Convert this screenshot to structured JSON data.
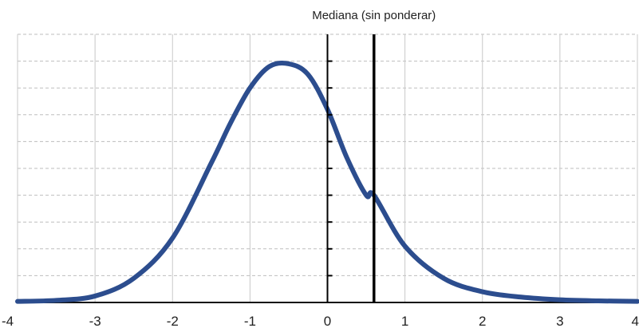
{
  "chart_data": {
    "type": "line",
    "title": "",
    "xlabel": "",
    "ylabel": "",
    "xlim": [
      -4,
      4
    ],
    "ylim": [
      0,
      0.5
    ],
    "grid": true,
    "grid_style": "horizontal dashed, vertical solid",
    "x_ticks": [
      -4,
      -3,
      -2,
      -1,
      0,
      1,
      2,
      3,
      4
    ],
    "x_tick_labels": [
      "-4",
      "-3",
      "-2",
      "-1",
      "0",
      "1",
      "2",
      "3",
      "4"
    ],
    "series": [
      {
        "color": "#2c4d8e",
        "x": [
          -4.0,
          -3.5,
          -3.0,
          -2.5,
          -2.0,
          -1.5,
          -1.25,
          -1.0,
          -0.75,
          -0.5,
          -0.25,
          0.0,
          0.25,
          0.5,
          0.6,
          1.0,
          1.5,
          2.0,
          2.5,
          3.0,
          3.5,
          4.0
        ],
        "y": [
          0.002,
          0.004,
          0.012,
          0.045,
          0.12,
          0.26,
          0.335,
          0.4,
          0.44,
          0.445,
          0.425,
          0.36,
          0.27,
          0.2,
          0.2,
          0.105,
          0.045,
          0.02,
          0.01,
          0.005,
          0.003,
          0.002
        ]
      }
    ],
    "vertical_lines": [
      {
        "x": 0,
        "style": "thin"
      },
      {
        "x": 0.6,
        "style": "thick"
      }
    ],
    "annotations": [
      {
        "text": "Mediana (sin ponderar)",
        "x": 0.6
      }
    ]
  }
}
